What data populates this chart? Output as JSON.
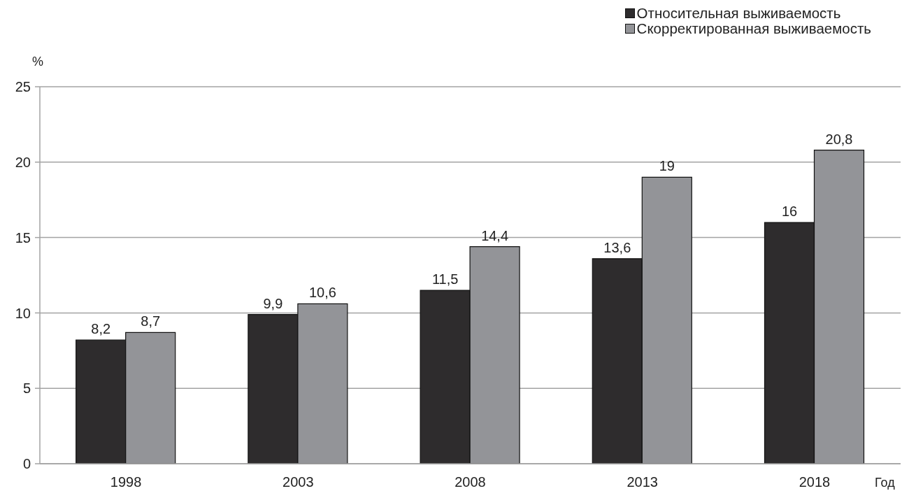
{
  "chart_data": {
    "type": "bar",
    "xlabel": "Год",
    "ylabel": "%",
    "categories": [
      "1998",
      "2003",
      "2008",
      "2013",
      "2018"
    ],
    "series": [
      {
        "name": "Относительная выживаемость",
        "color": "#2e2c2d",
        "values": [
          8.2,
          9.9,
          11.5,
          13.6,
          16
        ],
        "value_labels": [
          "8,2",
          "9,9",
          "11,5",
          "13,6",
          "16"
        ]
      },
      {
        "name": "Скорректированная выживаемость",
        "color": "#939498",
        "values": [
          8.7,
          10.6,
          14.4,
          19,
          20.8
        ],
        "value_labels": [
          "8,7",
          "10,6",
          "14,4",
          "19",
          "20,8"
        ]
      }
    ],
    "ylim": [
      0,
      25
    ],
    "yticks": [
      0,
      5,
      10,
      15,
      20,
      25
    ],
    "grid": "y",
    "legend": "top right"
  }
}
